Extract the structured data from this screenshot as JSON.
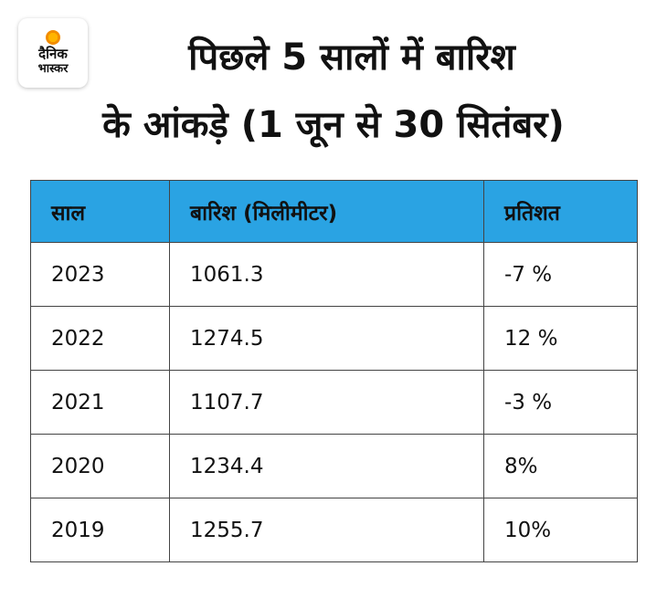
{
  "logo": {
    "line1": "दैनिक",
    "line2": "भास्कर"
  },
  "title": {
    "line1": "पिछले 5 सालों में बारिश",
    "line2": "के आंकड़े (1 जून से 30 सितंबर)"
  },
  "colors": {
    "header": "#2aa3e3",
    "border": "#444444",
    "sun": "#f28c00"
  },
  "chart_data": {
    "type": "table",
    "title": "पिछले 5 सालों में बारिश के आंकड़े (1 जून से 30 सितंबर)",
    "columns": [
      "साल",
      "बारिश (मिलीमीटर)",
      "प्रतिशत"
    ],
    "rows": [
      [
        "2023",
        "1061.3",
        "-7 %"
      ],
      [
        "2022",
        "1274.5",
        "12 %"
      ],
      [
        "2021",
        "1107.7",
        "-3 %"
      ],
      [
        "2020",
        "1234.4",
        "8%"
      ],
      [
        "2019",
        "1255.7",
        "10%"
      ]
    ]
  }
}
